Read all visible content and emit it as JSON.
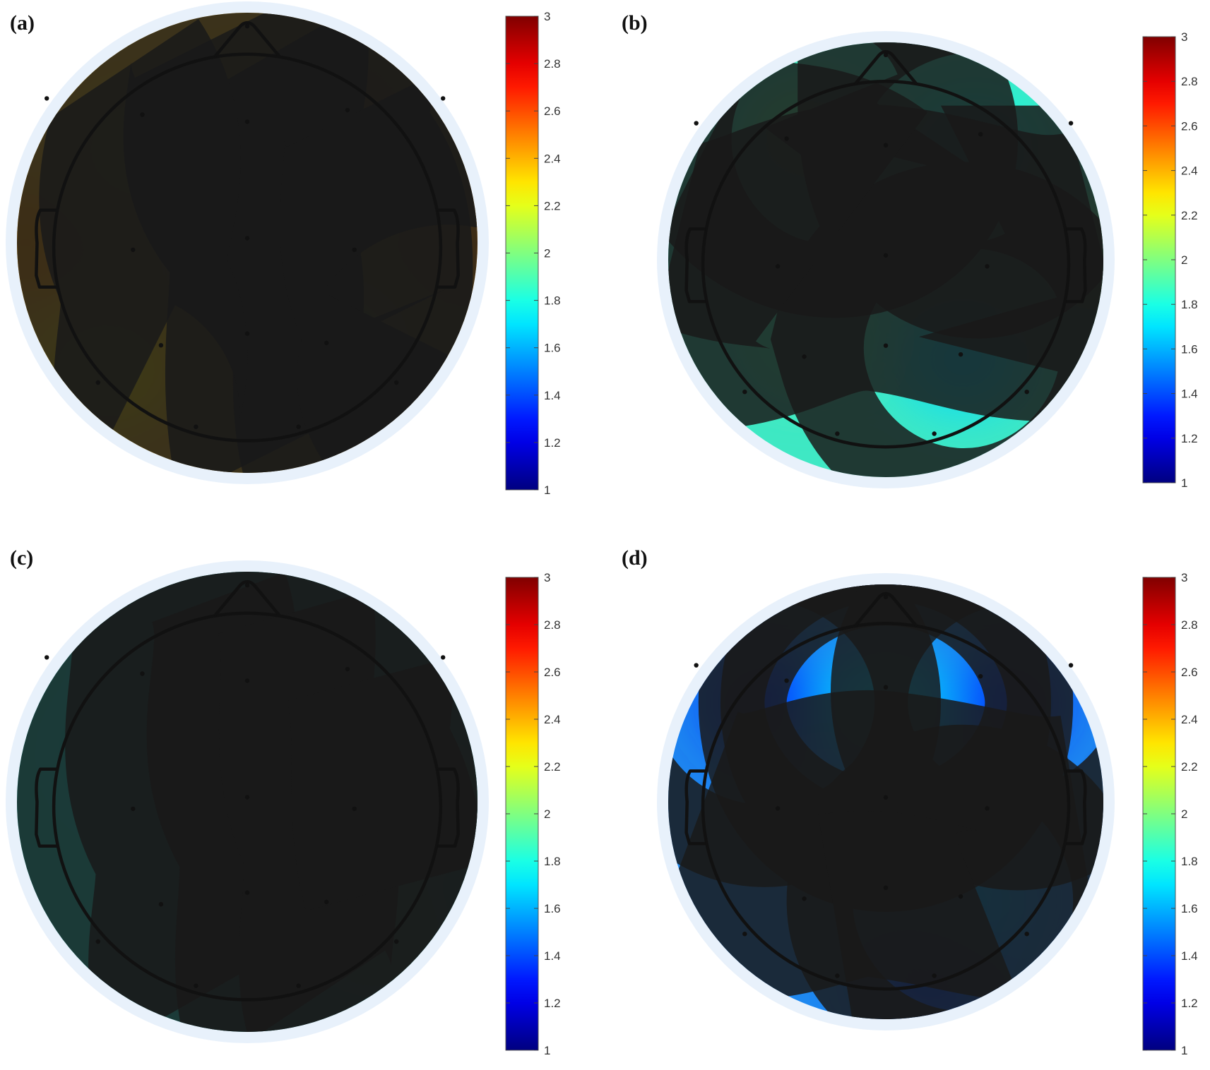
{
  "chart_data": [
    {
      "type": "heatmap",
      "label": "(a)",
      "base_color": "#f4b923",
      "colorbar": {
        "min": 1,
        "max": 3,
        "ticks": [
          1,
          1.2,
          1.4,
          1.6,
          1.8,
          2,
          2.2,
          2.4,
          2.6,
          2.8,
          3
        ]
      },
      "blobs": [
        {
          "x": 0.0,
          "y": -0.55,
          "value": 2.3
        },
        {
          "x": -0.45,
          "y": -0.4,
          "value": 2.28
        },
        {
          "x": 0.0,
          "y": -0.05,
          "value": 2.02
        },
        {
          "x": 0.35,
          "y": 0.45,
          "value": 2.1
        },
        {
          "x": 0.0,
          "y": 0.42,
          "value": 2.42
        },
        {
          "x": -0.6,
          "y": 0.55,
          "value": 2.28
        },
        {
          "x": 0.4,
          "y": -0.55,
          "value": 2.45
        },
        {
          "x": 0.95,
          "y": 0.0,
          "value": 2.48
        },
        {
          "x": -0.95,
          "y": 0.0,
          "value": 2.45
        }
      ]
    },
    {
      "type": "heatmap",
      "label": "(b)",
      "base_color": "#3fe8c4",
      "colorbar": {
        "min": 1,
        "max": 3,
        "ticks": [
          1,
          1.2,
          1.4,
          1.6,
          1.8,
          2,
          2.2,
          2.4,
          2.6,
          2.8,
          3
        ]
      },
      "blobs": [
        {
          "x": -0.35,
          "y": -0.55,
          "value": 1.95
        },
        {
          "x": 0.4,
          "y": -0.5,
          "value": 1.78
        },
        {
          "x": 0.35,
          "y": 0.45,
          "value": 1.68
        },
        {
          "x": -0.35,
          "y": 0.35,
          "value": 1.9
        },
        {
          "x": 0.95,
          "y": 0.0,
          "value": 1.98
        }
      ]
    },
    {
      "type": "heatmap",
      "label": "(c)",
      "base_color": "#27f0df",
      "colorbar": {
        "min": 1,
        "max": 3,
        "ticks": [
          1,
          1.2,
          1.4,
          1.6,
          1.8,
          2,
          2.2,
          2.4,
          2.6,
          2.8,
          3
        ]
      },
      "blobs": [
        {
          "x": -0.3,
          "y": -0.6,
          "value": 1.72
        },
        {
          "x": -0.45,
          "y": -0.2,
          "value": 1.72
        },
        {
          "x": -0.1,
          "y": 0.55,
          "value": 1.72
        },
        {
          "x": 0.75,
          "y": 0.0,
          "value": 1.86
        },
        {
          "x": 0.55,
          "y": 0.55,
          "value": 1.86
        }
      ]
    },
    {
      "type": "heatmap",
      "label": "(d)",
      "base_color": "#1e88f0",
      "colorbar": {
        "min": 1,
        "max": 3,
        "ticks": [
          1,
          1.2,
          1.4,
          1.6,
          1.8,
          2,
          2.2,
          2.4,
          2.6,
          2.8,
          3
        ]
      },
      "blobs": [
        {
          "x": -0.55,
          "y": -0.45,
          "value": 1.36
        },
        {
          "x": 0.55,
          "y": -0.45,
          "value": 1.36
        },
        {
          "x": 0.0,
          "y": -0.45,
          "value": 1.68
        },
        {
          "x": 0.35,
          "y": 0.45,
          "value": 1.6
        },
        {
          "x": 0.0,
          "y": 0.3,
          "value": 1.55
        },
        {
          "x": 0.2,
          "y": 0.8,
          "value": 1.38
        }
      ]
    }
  ]
}
